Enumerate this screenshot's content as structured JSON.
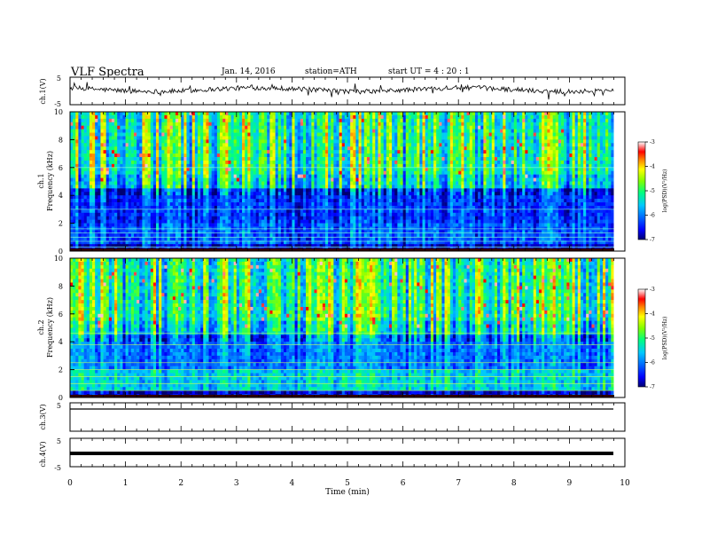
{
  "header": {
    "title": "VLF  Spectra",
    "date": "Jan. 14, 2016",
    "station": "station=ATH",
    "start": "start  UT  =   4  : 20 : 1"
  },
  "chart_data": [
    {
      "type": "line",
      "panel": "ch1-waveform",
      "ylabel": "ch.1(V)",
      "ylim": [
        -5,
        5
      ],
      "yticks": [
        5,
        -5
      ],
      "xlim": [
        0,
        10
      ],
      "baseline": 0
    },
    {
      "type": "heatmap",
      "panel": "ch1-spectrogram",
      "ylabel": "ch.1\nFrequency (kHz)",
      "ylim": [
        0,
        10
      ],
      "yticks": [
        0,
        2,
        4,
        6,
        8,
        10
      ],
      "xlim": [
        0,
        9.8
      ],
      "colorbar": {
        "label": "log(PSD)(V²/Hz)",
        "range": [
          -7,
          -3
        ],
        "ticks": [
          "-3",
          "-4",
          "-5",
          "-6",
          "-7"
        ]
      }
    },
    {
      "type": "heatmap",
      "panel": "ch2-spectrogram",
      "ylabel": "ch.2\nFrequency (kHz)",
      "ylim": [
        0,
        10
      ],
      "yticks": [
        0,
        2,
        4,
        6,
        8,
        10
      ],
      "xlim": [
        0,
        9.8
      ],
      "colorbar": {
        "label": "log(PSD)(V²/Hz)",
        "range": [
          -7,
          -3
        ],
        "ticks": [
          "-3",
          "-4",
          "-5",
          "-6",
          "-7"
        ]
      }
    },
    {
      "type": "line",
      "panel": "ch3-waveform",
      "ylabel": "ch.3(V)",
      "ylim": [
        -5,
        5
      ],
      "yticks": [
        5
      ],
      "xlim": [
        0,
        10
      ],
      "baseline": 0
    },
    {
      "type": "line",
      "panel": "ch4-waveform",
      "ylabel": "ch.4(V)",
      "ylim": [
        -5,
        5
      ],
      "yticks": [
        5,
        -5
      ],
      "xlim": [
        0,
        10
      ],
      "baseline": 0
    }
  ],
  "xaxis": {
    "label": "Time  (min)",
    "ticks": [
      "0",
      "1",
      "2",
      "3",
      "4",
      "5",
      "6",
      "7",
      "8",
      "9",
      "10"
    ]
  },
  "colors": {
    "scale": [
      "#000070",
      "#0000ff",
      "#0060ff",
      "#00c8ff",
      "#00ff80",
      "#80ff00",
      "#ffff00",
      "#ff8000",
      "#ff0000",
      "#ffffff"
    ]
  }
}
